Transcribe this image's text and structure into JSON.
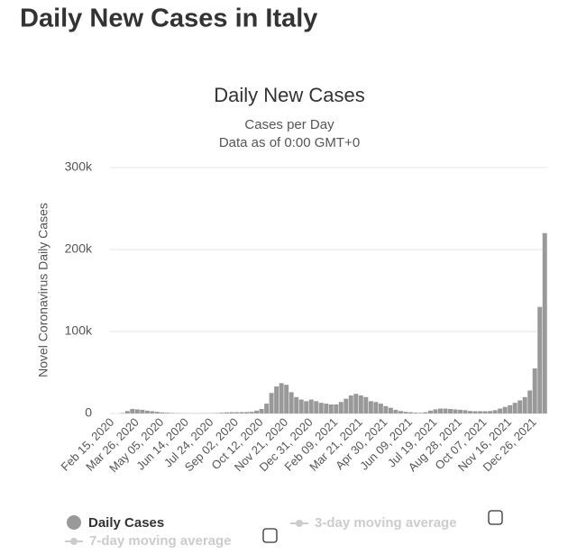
{
  "page_title": "Daily New Cases in Italy",
  "chart_data": {
    "type": "bar",
    "title": "Daily New Cases",
    "subtitle": [
      "Cases per Day",
      "Data as of 0:00 GMT+0"
    ],
    "y_label": "Novel Coronavirus Daily Cases",
    "categories": [
      "Feb 15, 2020",
      null,
      null,
      null,
      null,
      "Mar 26, 2020",
      null,
      null,
      null,
      null,
      "May 05, 2020",
      null,
      null,
      null,
      null,
      "Jun 14, 2020",
      null,
      null,
      null,
      null,
      "Jul 24, 2020",
      null,
      null,
      null,
      null,
      "Sep 02, 2020",
      null,
      null,
      null,
      null,
      "Oct 12, 2020",
      null,
      null,
      null,
      null,
      "Nov 21, 2020",
      null,
      null,
      null,
      null,
      "Dec 31, 2020",
      null,
      null,
      null,
      null,
      "Feb 09, 2021",
      null,
      null,
      null,
      null,
      "Mar 21, 2021",
      null,
      null,
      null,
      null,
      "Apr 30, 2021",
      null,
      null,
      null,
      null,
      "Jun 09, 2021",
      null,
      null,
      null,
      null,
      "Jul 19, 2021",
      null,
      null,
      null,
      null,
      "Aug 28, 2021",
      null,
      null,
      null,
      null,
      "Oct 07, 2021",
      null,
      null,
      null,
      null,
      "Nov 16, 2021",
      null,
      null,
      null,
      null,
      "Dec 26, 2021",
      null,
      null
    ],
    "series": [
      {
        "name": "Daily Cases",
        "color": "#999999",
        "values": [
          0,
          0,
          500,
          3000,
          5500,
          5000,
          4500,
          3500,
          2800,
          2000,
          1300,
          900,
          600,
          400,
          300,
          250,
          200,
          200,
          250,
          300,
          350,
          500,
          900,
          1300,
          1500,
          1500,
          1600,
          1700,
          2000,
          3500,
          5500,
          12000,
          25000,
          33000,
          37000,
          35000,
          26000,
          20000,
          17000,
          15000,
          17000,
          15000,
          13000,
          12000,
          11000,
          11000,
          14000,
          18000,
          22000,
          24000,
          22000,
          20000,
          15000,
          14000,
          12000,
          9000,
          7000,
          4500,
          3000,
          2000,
          1500,
          1000,
          800,
          1500,
          3500,
          5000,
          6000,
          6000,
          5500,
          5000,
          4500,
          4000,
          3000,
          2800,
          2800,
          2800,
          3000,
          4000,
          6000,
          8000,
          10000,
          13000,
          16000,
          20000,
          28000,
          55000,
          130000,
          220000
        ]
      }
    ],
    "other_legend": [
      "3-day moving average",
      "7-day moving average"
    ],
    "ylim": [
      0,
      300000
    ],
    "yticks": [
      0,
      {
        "value": 100000,
        "label": "100k"
      },
      {
        "value": 200000,
        "label": "200k"
      },
      {
        "value": 300000,
        "label": "300k"
      }
    ],
    "grid": true
  }
}
